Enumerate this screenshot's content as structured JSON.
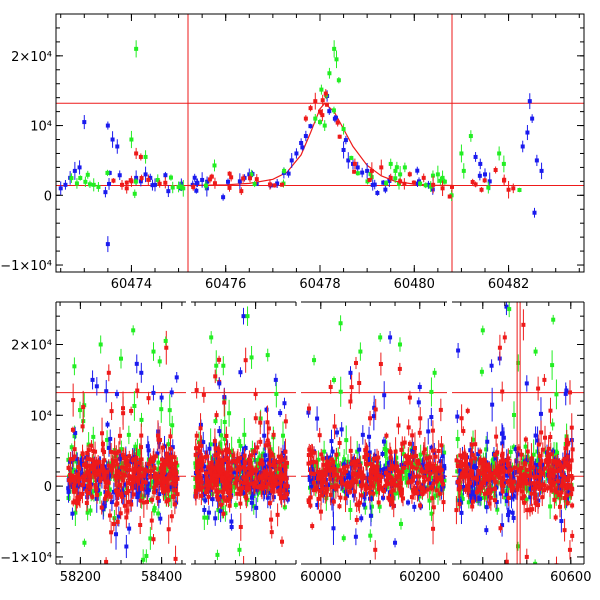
{
  "colors": {
    "green": "#22ee22",
    "blue": "#1a1aee",
    "red": "#ee1a1a",
    "frame": "#000000"
  },
  "chart_data": [
    {
      "type": "scatter",
      "title": "",
      "xlabel": "",
      "ylabel": "",
      "xlim": [
        60472.4,
        60483.6
      ],
      "ylim": [
        -11000,
        26000
      ],
      "x_ticks": [
        60474,
        60476,
        60478,
        60480,
        60482
      ],
      "x_tick_labels": [
        "60474",
        "60476",
        "60478",
        "60480",
        "60482"
      ],
      "y_ticks": [
        -10000,
        0,
        10000,
        20000
      ],
      "y_tick_labels": [
        "−1×10⁴",
        "0",
        "10⁴",
        "2×10⁴"
      ],
      "hlines": [
        1400,
        13200
      ],
      "vlines": [
        60475.2,
        60480.8
      ],
      "model_curve": {
        "name": "",
        "color": "red",
        "baseline": 1400,
        "peak": 13200,
        "t0": 60478.1,
        "x": [
          60475.2,
          60476.0,
          60476.5,
          60477.0,
          60477.3,
          60477.6,
          60477.8,
          60478.0,
          60478.1,
          60478.3,
          60478.5,
          60478.7,
          60479.0,
          60479.3,
          60479.6,
          60480.0,
          60480.4,
          60480.8
        ],
        "y": [
          1400,
          1500,
          1700,
          2300,
          3300,
          5800,
          9000,
          12400,
          13200,
          12000,
          9500,
          7000,
          4300,
          2800,
          2000,
          1600,
          1450,
          1400
        ]
      },
      "series": [
        {
          "color": "blue",
          "x": [
            60472.5,
            60472.6,
            60472.7,
            60472.8,
            60472.9,
            60473.0,
            60473.5,
            60473.6,
            60473.7,
            60473.5,
            60474.1,
            60474.2,
            60474.3,
            60474.4,
            60474.5,
            60475.3,
            60475.4,
            60475.5,
            60475.6,
            60476.3,
            60476.4,
            60476.5,
            60477.4,
            60477.5,
            60477.6,
            60477.7,
            60478.5,
            60478.6,
            60478.7,
            60478.8,
            60479.0,
            60480.1,
            60480.3,
            60481.3,
            60481.4,
            60481.5,
            60481.6,
            60482.3,
            60482.4,
            60482.5,
            60482.6,
            60482.7,
            60482.45,
            60482.55
          ],
          "y": [
            1000,
            1500,
            2500,
            3500,
            4000,
            10500,
            10000,
            8000,
            7000,
            -7000,
            2500,
            2000,
            3000,
            2500,
            1500,
            1500,
            1800,
            2200,
            1000,
            2000,
            2500,
            3000,
            5000,
            6000,
            7500,
            8500,
            6500,
            5000,
            4500,
            4000,
            3500,
            2000,
            1500,
            5500,
            4500,
            3000,
            2000,
            7000,
            9000,
            11000,
            5000,
            3500,
            13500,
            -2500
          ]
        },
        {
          "color": "green",
          "x": [
            60473.2,
            60473.3,
            60474.0,
            60474.1,
            60474.3,
            60475.0,
            60475.1,
            60477.9,
            60478.0,
            60478.1,
            60478.2,
            60478.3,
            60478.35,
            60478.4,
            60478.5,
            60479.5,
            60479.6,
            60479.7,
            60479.8,
            60480.5,
            60480.6,
            60481.0,
            60481.05,
            60481.2,
            60481.8,
            60481.9
          ],
          "y": [
            1500,
            1200,
            8000,
            21000,
            5500,
            1200,
            1000,
            11000,
            10500,
            10000,
            17500,
            21000,
            19500,
            16500,
            9500,
            4500,
            3500,
            3000,
            4000,
            3000,
            2500,
            6000,
            3500,
            8500,
            6000,
            4500
          ]
        },
        {
          "color": "red",
          "x": [
            60473.8,
            60473.9,
            60474.0,
            60474.1,
            60477.7,
            60477.8,
            60477.9,
            60478.0,
            60478.05,
            60479.1,
            60479.3,
            60479.5,
            60479.7,
            60480.2,
            60480.4,
            60480.6,
            60480.8,
            60482.0,
            60482.1,
            60474.2
          ],
          "y": [
            1500,
            1000,
            2000,
            6000,
            11000,
            12500,
            13500,
            12000,
            11500,
            3500,
            4000,
            2500,
            2000,
            2500,
            1500,
            1000,
            1200,
            800,
            1000,
            5500
          ]
        }
      ]
    },
    {
      "type": "scatter",
      "title": "",
      "xlabel": "",
      "ylabel": "",
      "xlim": [
        58140,
        60630
      ],
      "x_axis_breaks": [
        [
          58460,
          59640
        ],
        [
          59900,
          59960
        ],
        [
          60255,
          60330
        ]
      ],
      "ylim": [
        -11000,
        26000
      ],
      "x_ticks": [
        58200,
        58400,
        59800,
        60000,
        60200,
        60400,
        60600
      ],
      "x_tick_labels": [
        "58200",
        "58400",
        "59800",
        "60000",
        "60200",
        "60400",
        "60600"
      ],
      "y_ticks": [
        -10000,
        0,
        10000,
        20000
      ],
      "y_tick_labels": [
        "−1×10⁴",
        "0",
        "10⁴",
        "2×10⁴"
      ],
      "hlines": [
        1400,
        13200
      ],
      "vlines": [
        60478
      ],
      "seasons": [
        {
          "start": 58170,
          "end": 58440,
          "baseline": 1400,
          "spread": 2500
        },
        {
          "start": 59650,
          "end": 59880,
          "baseline": 1400,
          "spread": 2500
        },
        {
          "start": 59975,
          "end": 60250,
          "baseline": 1400,
          "spread": 2500
        },
        {
          "start": 60340,
          "end": 60605,
          "baseline": 1400,
          "spread": 2500
        }
      ],
      "outliers": [
        {
          "color": "green",
          "x": [
            58250,
            58300,
            58330,
            58380,
            58410,
            59690,
            59720,
            59780,
            59830,
            60040,
            60080,
            60120,
            60160,
            60230,
            60400,
            60460,
            60520,
            60560,
            58210,
            59760,
            60100,
            60480
          ],
          "y": [
            20000,
            18000,
            22000,
            19000,
            20500,
            21000,
            17000,
            24000,
            18500,
            23000,
            19000,
            21000,
            20000,
            16000,
            22000,
            25000,
            19000,
            23500,
            -8000,
            -9000,
            -7000,
            -8500
          ]
        },
        {
          "color": "blue",
          "x": [
            58230,
            58290,
            58350,
            58400,
            59710,
            59770,
            59850,
            60060,
            60140,
            60200,
            60420,
            60500,
            60590,
            58320,
            59740,
            60150,
            60470
          ],
          "y": [
            15000,
            13000,
            16000,
            12500,
            14500,
            24000,
            15000,
            16000,
            21000,
            14000,
            17000,
            14500,
            13500,
            -6000,
            -5000,
            -8000,
            -4500
          ]
        },
        {
          "color": "red",
          "x": [
            58270,
            58340,
            59700,
            59800,
            60020,
            60180,
            60450,
            60540,
            58380,
            59840,
            60110,
            60500
          ],
          "y": [
            16000,
            13500,
            15500,
            13000,
            14000,
            12500,
            21000,
            15000,
            -7500,
            -6500,
            -9000,
            -10000
          ]
        }
      ]
    }
  ]
}
